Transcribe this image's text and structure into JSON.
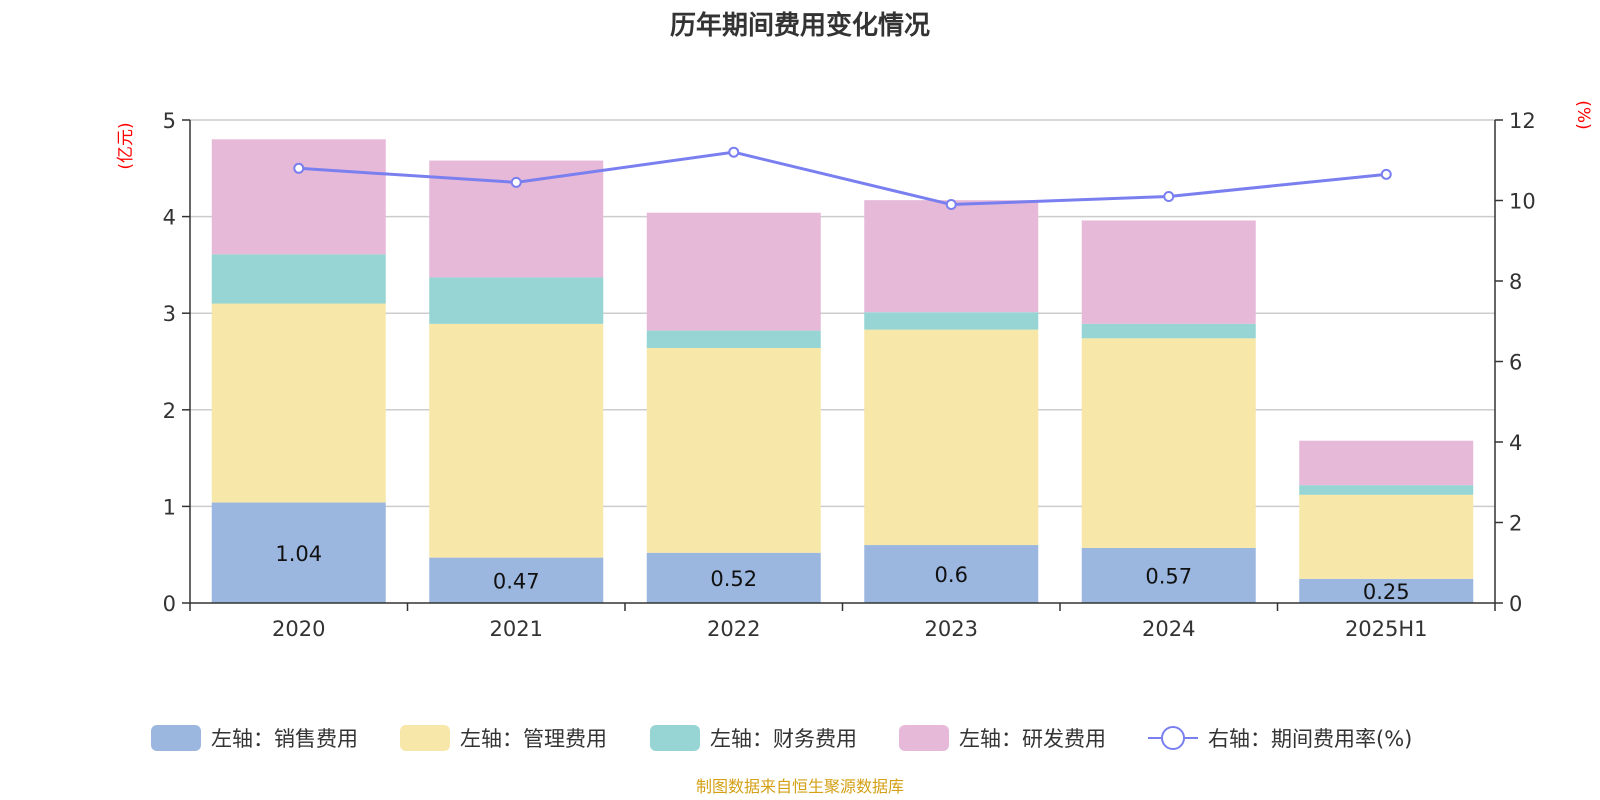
{
  "chart_data": {
    "type": "bar",
    "title": "历年期间费用变化情况",
    "left_axis_unit": "(亿元)",
    "right_axis_unit": "(%)",
    "categories": [
      "2020",
      "2021",
      "2022",
      "2023",
      "2024",
      "2025H1"
    ],
    "left_ylim": [
      0,
      5
    ],
    "left_ticks": [
      "0",
      "1",
      "2",
      "3",
      "4",
      "5"
    ],
    "right_ylim": [
      0,
      12
    ],
    "right_ticks": [
      "0",
      "2",
      "4",
      "6",
      "8",
      "10",
      "12"
    ],
    "stacked": true,
    "grid": true,
    "legend_position": "bottom",
    "series": [
      {
        "name": "左轴：销售费用",
        "type": "bar",
        "axis": "left",
        "color": "#9bb7e0",
        "values": [
          1.04,
          0.47,
          0.52,
          0.6,
          0.57,
          0.25
        ],
        "labels": [
          "1.04",
          "0.47",
          "0.52",
          "0.6",
          "0.57",
          "0.25"
        ]
      },
      {
        "name": "左轴：管理费用",
        "type": "bar",
        "axis": "left",
        "color": "#f7e7a8",
        "values": [
          2.06,
          2.42,
          2.12,
          2.23,
          2.17,
          0.87
        ]
      },
      {
        "name": "左轴：财务费用",
        "type": "bar",
        "axis": "left",
        "color": "#96d5d4",
        "values": [
          0.51,
          0.48,
          0.18,
          0.18,
          0.15,
          0.1
        ]
      },
      {
        "name": "左轴：研发费用",
        "type": "bar",
        "axis": "left",
        "color": "#e7b9d8",
        "values": [
          1.19,
          1.21,
          1.22,
          1.16,
          1.07,
          0.46
        ]
      },
      {
        "name": "右轴：期间费用率(%)",
        "type": "line",
        "axis": "right",
        "color": "#7a7ff0",
        "values": [
          10.8,
          10.45,
          11.2,
          9.9,
          10.1,
          10.65
        ]
      }
    ]
  },
  "footer": {
    "source": "制图数据来自恒生聚源数据库"
  }
}
